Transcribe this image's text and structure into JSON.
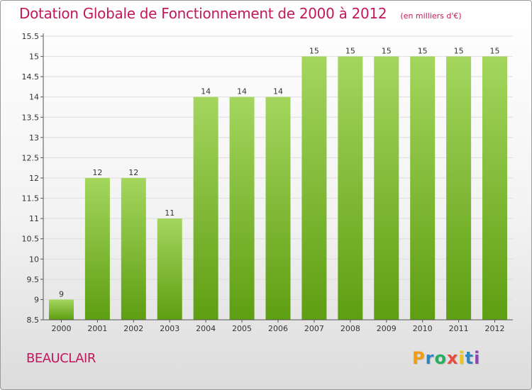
{
  "title": "Dotation Globale de Fonctionnement de 2000 à 2012",
  "unit": "(en milliers d'€)",
  "commune": "BEAUCLAIR",
  "logo": {
    "text": "Proxiti",
    "letters": [
      {
        "ch": "P",
        "color": "#f39c12"
      },
      {
        "ch": "r",
        "color": "#2e86c1"
      },
      {
        "ch": "o",
        "color": "#27ae60"
      },
      {
        "ch": "x",
        "color": "#e74c3c"
      },
      {
        "ch": "i",
        "color": "#f1c40f"
      },
      {
        "ch": "t",
        "color": "#2e86c1"
      },
      {
        "ch": "i",
        "color": "#8e44ad"
      }
    ]
  },
  "colors": {
    "bar_top": "#a4d65e",
    "bar_bottom": "#5e9e12",
    "grid": "#dddddd",
    "axis": "#555555",
    "text": "#333333",
    "accent": "#c2185b"
  },
  "chart_data": {
    "type": "bar",
    "categories": [
      "2000",
      "2001",
      "2002",
      "2003",
      "2004",
      "2005",
      "2006",
      "2007",
      "2008",
      "2009",
      "2010",
      "2011",
      "2012"
    ],
    "values": [
      9,
      12,
      12,
      11,
      14,
      14,
      14,
      15,
      15,
      15,
      15,
      15,
      15
    ],
    "data_labels": [
      "9",
      "12",
      "12",
      "11",
      "14",
      "14",
      "14",
      "15",
      "15",
      "15",
      "15",
      "15",
      "15"
    ],
    "bar_heights": [
      9.0,
      12.0,
      12.0,
      11.0,
      14.0,
      14.0,
      14.0,
      15.0,
      15.0,
      15.0,
      15.0,
      15.0,
      15.0
    ],
    "ylim": [
      8.5,
      15.5
    ],
    "yticks": [
      8.5,
      9,
      9.5,
      10,
      10.5,
      11,
      11.5,
      12,
      12.5,
      13,
      13.5,
      14,
      14.5,
      15,
      15.5
    ],
    "ytick_labels": [
      "8.5",
      "9",
      "9.5",
      "10",
      "10.5",
      "11",
      "11.5",
      "12",
      "12.5",
      "13",
      "13.5",
      "14",
      "14.5",
      "15",
      "15.5"
    ],
    "xlabel": "",
    "ylabel": "",
    "grid": true,
    "legend": "none"
  }
}
